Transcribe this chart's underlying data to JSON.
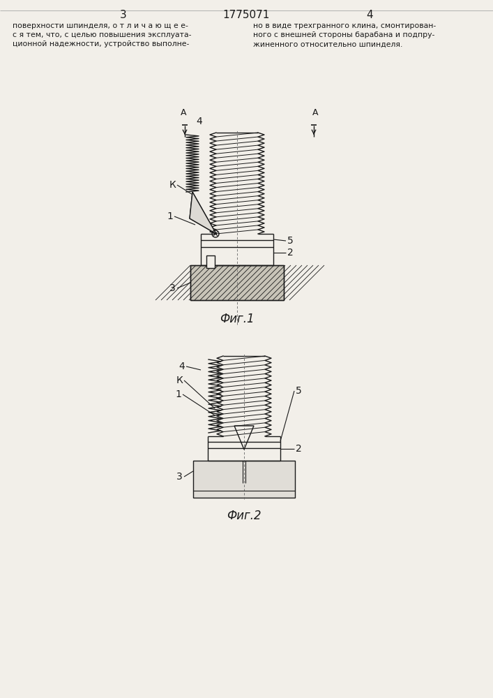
{
  "page_num_left": "3",
  "page_num_center": "1775071",
  "page_num_right": "4",
  "text_left": "поверхности шпинделя, о т л и ч а ю щ е е-\nс я тем, что, с целью повышения эксплуата-\nционной надежности, устройство выполне-",
  "text_right": "но в виде трехгранного клина, смонтирован-\nного с внешней стороны барабана и подпру-\nжиненного относительно шпинделя.",
  "fig1_caption": "Фиг.1",
  "fig2_caption": "Фиг.2",
  "bg_color": "#f2efe9",
  "line_color": "#1a1a1a",
  "text_color": "#1a1a1a"
}
